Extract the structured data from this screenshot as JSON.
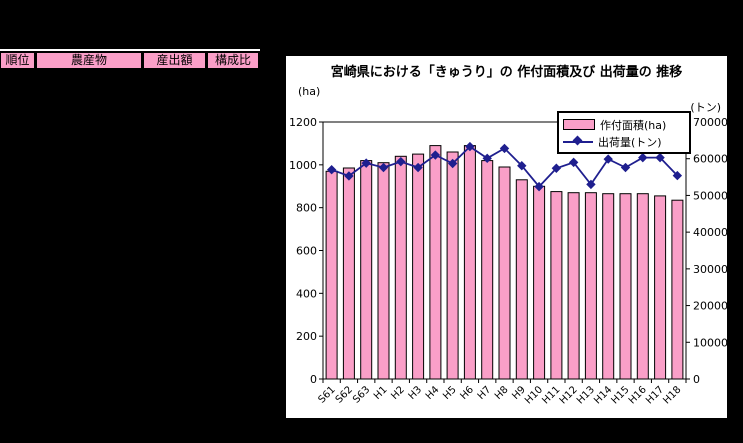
{
  "ranking_table": {
    "columns": [
      "順位",
      "農産物",
      "産出額",
      "構成比"
    ]
  },
  "chart": {
    "title": "宮崎県における「きゅうり」の 作付面積及び 出荷量の 推移",
    "left_axis_unit": "(ha)",
    "right_axis_unit": "(トン)"
  },
  "colors": {
    "page_background": "#000000",
    "panel_background": "#FFFFFF",
    "bar_fill": "#FA9FC8",
    "bar_border": "#000000",
    "line_color": "#1F1F8F",
    "table_header_fill": "#FA9FC8",
    "text_color": "#000000"
  },
  "chart_data": {
    "type": "bar",
    "combo": "bar + line, dual axis",
    "title": "宮崎県における「きゅうり」の 作付面積及び 出荷量の 推移",
    "categories": [
      "S61",
      "S62",
      "S63",
      "H1",
      "H2",
      "H3",
      "H4",
      "H5",
      "H6",
      "H7",
      "H8",
      "H9",
      "H10",
      "H11",
      "H12",
      "H13",
      "H14",
      "H15",
      "H16",
      "H17",
      "H18"
    ],
    "series": [
      {
        "name": "作付面積(ha)",
        "type": "bar",
        "axis": "left",
        "values": [
          970,
          985,
          1020,
          1010,
          1040,
          1050,
          1090,
          1060,
          1090,
          1020,
          990,
          930,
          900,
          875,
          870,
          870,
          865,
          865,
          865,
          855,
          835
        ]
      },
      {
        "name": "出荷量(トン)",
        "type": "line",
        "axis": "right",
        "values": [
          57000,
          55300,
          58800,
          57600,
          59200,
          57600,
          61000,
          58700,
          63300,
          60100,
          62800,
          58100,
          52400,
          57400,
          59000,
          53000,
          59900,
          57600,
          60300,
          60300,
          55400
        ]
      }
    ],
    "left_axis": {
      "label": "(ha)",
      "min": 0,
      "max": 1200,
      "step": 200
    },
    "right_axis": {
      "label": "(トン)",
      "min": 0,
      "max": 70000,
      "step": 10000
    },
    "legend_position": "top-right-inside",
    "grid": false,
    "x_tick_label_rotation": 45
  }
}
